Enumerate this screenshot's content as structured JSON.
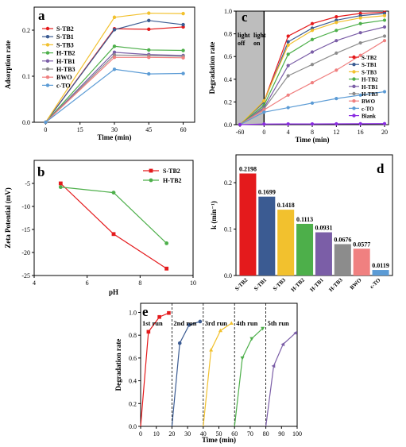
{
  "panels": [
    {
      "letter": "a",
      "chart_data": {
        "type": "line",
        "x": [
          0,
          30,
          45,
          60
        ],
        "xlabel": "Time (min)",
        "ylabel": "Adsorption rate",
        "xlim": [
          -5,
          65
        ],
        "ylim": [
          0,
          0.25
        ],
        "xticks": [
          0,
          15,
          30,
          45,
          60
        ],
        "yticks": [
          0.0,
          0.1,
          0.2
        ],
        "ytick_labels": [
          "0.0",
          "0.1",
          "0.2"
        ],
        "legend_position": "upper-left",
        "series": [
          {
            "name": "S-TB2",
            "color": "#e41a1c",
            "marker": "circle",
            "values": [
              0,
              0.203,
              0.202,
              0.207
            ]
          },
          {
            "name": "S-TB1",
            "color": "#3b5b92",
            "marker": "circle",
            "values": [
              0,
              0.201,
              0.221,
              0.212
            ]
          },
          {
            "name": "S-TB3",
            "color": "#f2c12e",
            "marker": "circle",
            "values": [
              0,
              0.228,
              0.237,
              0.236
            ]
          },
          {
            "name": "H-TB2",
            "color": "#4daf4a",
            "marker": "circle",
            "values": [
              0,
              0.165,
              0.157,
              0.156
            ]
          },
          {
            "name": "H-TB1",
            "color": "#7b5ea7",
            "marker": "circle",
            "values": [
              0,
              0.152,
              0.147,
              0.145
            ]
          },
          {
            "name": "H-TB3",
            "color": "#8c8c8c",
            "marker": "circle",
            "values": [
              0,
              0.146,
              0.145,
              0.143
            ]
          },
          {
            "name": "BWO",
            "color": "#f08080",
            "marker": "circle",
            "values": [
              0,
              0.141,
              0.141,
              0.14
            ]
          },
          {
            "name": "c-TO",
            "color": "#5b9bd5",
            "marker": "circle",
            "values": [
              0,
              0.115,
              0.105,
              0.106
            ]
          }
        ]
      }
    },
    {
      "letter": "c",
      "annotations": {
        "dark": "light\noff",
        "light": "light\non"
      },
      "chart_data": {
        "type": "line",
        "x": [
          -60,
          0,
          4,
          8,
          12,
          16,
          20
        ],
        "xlabel": "Time (min)",
        "ylabel": "Degradation rate",
        "xlim": [
          -60,
          20
        ],
        "ylim": [
          0,
          1.0
        ],
        "xticks": [
          -60,
          0,
          4,
          8,
          12,
          16,
          20
        ],
        "yticks": [
          0.0,
          0.2,
          0.4,
          0.6,
          0.8,
          1.0
        ],
        "ytick_labels": [
          "0.0",
          "0.2",
          "0.4",
          "0.6",
          "0.8",
          "1.0"
        ],
        "shaded_region": [
          -60,
          0
        ],
        "legend_position": "right",
        "series": [
          {
            "name": "S-TB2",
            "color": "#e41a1c",
            "values": [
              0,
              0.205,
              0.78,
              0.89,
              0.95,
              0.98,
              0.99
            ]
          },
          {
            "name": "S-TB1",
            "color": "#3b5b92",
            "values": [
              0,
              0.2,
              0.73,
              0.85,
              0.92,
              0.96,
              0.98
            ]
          },
          {
            "name": "S-TB3",
            "color": "#f2c12e",
            "values": [
              0,
              0.21,
              0.7,
              0.83,
              0.9,
              0.94,
              0.96
            ]
          },
          {
            "name": "H-TB2",
            "color": "#4daf4a",
            "values": [
              0,
              0.17,
              0.62,
              0.75,
              0.83,
              0.89,
              0.92
            ]
          },
          {
            "name": "H-TB1",
            "color": "#7b5ea7",
            "values": [
              0,
              0.15,
              0.52,
              0.64,
              0.74,
              0.81,
              0.86
            ]
          },
          {
            "name": "H-TB3",
            "color": "#8c8c8c",
            "values": [
              0,
              0.14,
              0.43,
              0.53,
              0.63,
              0.72,
              0.78
            ]
          },
          {
            "name": "BWO",
            "color": "#f08080",
            "values": [
              0,
              0.13,
              0.26,
              0.37,
              0.48,
              0.61,
              0.74
            ]
          },
          {
            "name": "c-TO",
            "color": "#5b9bd5",
            "values": [
              0,
              0.11,
              0.15,
              0.19,
              0.23,
              0.26,
              0.29
            ]
          },
          {
            "name": "Blank",
            "color": "#8a2be2",
            "values": [
              0,
              0.005,
              0.006,
              0.006,
              0.007,
              0.008,
              0.009
            ]
          }
        ]
      }
    },
    {
      "letter": "b",
      "chart_data": {
        "type": "line",
        "x": [
          5,
          7,
          9
        ],
        "xlabel": "pH",
        "ylabel": "Zeta Potential (mV)",
        "xlim": [
          4,
          10
        ],
        "ylim": [
          -25,
          0
        ],
        "xticks": [
          4,
          6,
          8,
          10
        ],
        "yticks": [
          -25,
          -20,
          -15,
          -10,
          -5
        ],
        "ytick_labels": [
          "-25",
          "-20",
          "-15",
          "-10",
          "-5"
        ],
        "legend_position": "upper-right",
        "series": [
          {
            "name": "S-TB2",
            "color": "#e41a1c",
            "marker": "square",
            "values": [
              -5.0,
              -16.0,
              -23.5
            ]
          },
          {
            "name": "H-TB2",
            "color": "#4daf4a",
            "marker": "circle",
            "values": [
              -5.8,
              -7.0,
              -18.0
            ]
          }
        ]
      }
    },
    {
      "letter": "d",
      "chart_data": {
        "type": "bar",
        "categories": [
          "S-TB2",
          "S-TB1",
          "S-TB3",
          "H-TB2",
          "H-TB1",
          "H-TB3",
          "BWO",
          "c-TO"
        ],
        "values": [
          0.2198,
          0.1699,
          0.1418,
          0.1113,
          0.0931,
          0.0676,
          0.0577,
          0.0119
        ],
        "value_labels": [
          "0.2198",
          "0.1699",
          "0.1418",
          "0.1113",
          "0.0931",
          "0.0676",
          "0.0577",
          "0.0119"
        ],
        "colors": [
          "#e41a1c",
          "#3b5b92",
          "#f2c12e",
          "#4daf4a",
          "#7b5ea7",
          "#8c8c8c",
          "#f08080",
          "#5b9bd5"
        ],
        "ylabel": "k (min⁻¹)",
        "ylim": [
          0,
          0.26
        ],
        "yticks": [
          0.0,
          0.1,
          0.2
        ],
        "ytick_labels": [
          "0.0",
          "0.1",
          "0.2"
        ]
      }
    },
    {
      "letter": "e",
      "chart_data": {
        "type": "line",
        "xlabel": "Time (min)",
        "ylabel": "Degradation rate",
        "xlim": [
          0,
          100
        ],
        "ylim": [
          0,
          1.08
        ],
        "xticks": [
          0,
          10,
          20,
          30,
          40,
          50,
          60,
          70,
          80,
          90,
          100
        ],
        "yticks": [
          0.0,
          0.2,
          0.4,
          0.6,
          0.8,
          1.0
        ],
        "ytick_labels": [
          "0.0",
          "0.2",
          "0.4",
          "0.6",
          "0.8",
          "1.0"
        ],
        "dividers": [
          20,
          40,
          60,
          80
        ],
        "series": [
          {
            "name": "1st run",
            "color": "#e41a1c",
            "marker": "square",
            "x": [
              0,
              5,
              12,
              18
            ],
            "values": [
              0,
              0.83,
              0.96,
              0.995
            ]
          },
          {
            "name": "2nd run",
            "color": "#3b5b92",
            "marker": "circle",
            "x": [
              20,
              25,
              31,
              38
            ],
            "values": [
              0,
              0.73,
              0.89,
              0.92
            ]
          },
          {
            "name": "3rd run",
            "color": "#f2c12e",
            "marker": "triangle-up",
            "x": [
              40,
              45,
              51,
              58
            ],
            "values": [
              0,
              0.67,
              0.84,
              0.905
            ]
          },
          {
            "name": "4th run",
            "color": "#4daf4a",
            "marker": "triangle-down",
            "x": [
              60,
              65,
              71,
              78
            ],
            "values": [
              0,
              0.6,
              0.77,
              0.86
            ]
          },
          {
            "name": "5th run",
            "color": "#7b5ea7",
            "marker": "triangle-left",
            "x": [
              80,
              85,
              91,
              99
            ],
            "values": [
              0,
              0.53,
              0.72,
              0.82
            ]
          }
        ]
      }
    }
  ]
}
